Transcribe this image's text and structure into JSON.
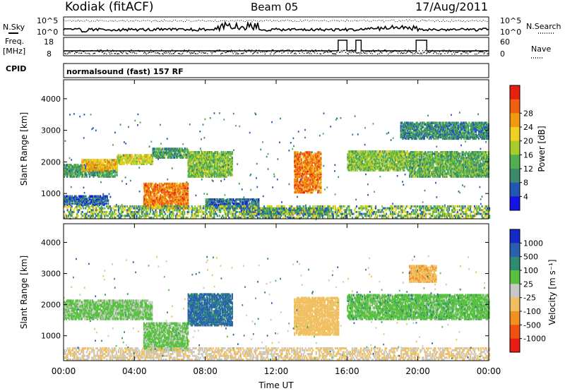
{
  "header": {
    "station": "Kodiak (fitACF)",
    "beam": "Beam 05",
    "date": "17/Aug/2011",
    "cpid_label": "CPID",
    "cpid_value": "normalsound (fast) 157 RF"
  },
  "left_labels": {
    "nsky": "N.Sky",
    "freq_line1": "Freq.",
    "freq_line2": "[MHz]"
  },
  "right_labels": {
    "nsearch": "N.Search",
    "nave": "Nave"
  },
  "status_axes": {
    "noise_ticks_left": [
      "10^5",
      "10^0"
    ],
    "noise_ticks_right": [
      "10^5",
      "10^0"
    ],
    "freq_ticks": [
      "18",
      "8"
    ],
    "nave_ticks": [
      "60",
      "0"
    ]
  },
  "chart_data": [
    {
      "type": "heatmap",
      "panel": "power",
      "ylabel": "Slant Range [km]",
      "y_ticks": [
        "1000",
        "2000",
        "3000",
        "4000"
      ],
      "ylim": [
        200,
        4600
      ],
      "colorbar": {
        "label": "Power [dB]",
        "ticks": [
          "4",
          "8",
          "12",
          "16",
          "20",
          "24",
          "28"
        ],
        "colors": [
          "#1414e6",
          "#2456b4",
          "#3a8a6c",
          "#50b050",
          "#a8cc28",
          "#f0d020",
          "#f09a10",
          "#f06010",
          "#e82010"
        ]
      },
      "regions": [
        {
          "t": [
            0.0,
            3.0
          ],
          "r": [
            1500,
            1900
          ],
          "v": 10
        },
        {
          "t": [
            1.0,
            3.0
          ],
          "r": [
            1700,
            2050
          ],
          "v": 22
        },
        {
          "t": [
            3.0,
            5.0
          ],
          "r": [
            1900,
            2200
          ],
          "v": 18
        },
        {
          "t": [
            5.0,
            7.0
          ],
          "r": [
            2100,
            2400
          ],
          "v": 10
        },
        {
          "t": [
            7.0,
            9.5
          ],
          "r": [
            1500,
            2300
          ],
          "v": 14
        },
        {
          "t": [
            4.5,
            7.0
          ],
          "r": [
            500,
            1300
          ],
          "v": 26
        },
        {
          "t": [
            0.0,
            2.5
          ],
          "r": [
            600,
            900
          ],
          "v": 5
        },
        {
          "t": [
            13.0,
            14.5
          ],
          "r": [
            1000,
            2300
          ],
          "v": 26
        },
        {
          "t": [
            16.0,
            19.5
          ],
          "r": [
            1700,
            2300
          ],
          "v": 14
        },
        {
          "t": [
            19.5,
            24.0
          ],
          "r": [
            1500,
            2300
          ],
          "v": 12
        },
        {
          "t": [
            19.0,
            24.0
          ],
          "r": [
            2700,
            3200
          ],
          "v": 8
        },
        {
          "t": [
            8.0,
            11.0
          ],
          "r": [
            500,
            800
          ],
          "v": 6
        },
        {
          "t": [
            10.0,
            15.0
          ],
          "r": [
            300,
            500
          ],
          "v": 6
        }
      ]
    },
    {
      "type": "heatmap",
      "panel": "velocity",
      "xlabel": "Time UT",
      "ylabel": "Slant Range [km]",
      "x_ticks": [
        "00:00",
        "04:00",
        "08:00",
        "12:00",
        "16:00",
        "20:00",
        "00:00"
      ],
      "y_ticks": [
        "1000",
        "2000",
        "3000",
        "4000"
      ],
      "xlim": [
        0,
        24
      ],
      "ylim": [
        200,
        4600
      ],
      "colorbar": {
        "label": "Velocity [m s⁻¹]",
        "ticks": [
          "1000",
          "500",
          "100",
          "25",
          "-25",
          "-100",
          "-500",
          "-1000"
        ],
        "colors": [
          "#1428c8",
          "#2860b0",
          "#2e8a70",
          "#58c040",
          "#c8c8c8",
          "#f0c060",
          "#f09020",
          "#f05010",
          "#e81c10"
        ]
      },
      "regions": [
        {
          "t": [
            0.0,
            5.0
          ],
          "r": [
            1500,
            2100
          ],
          "v": -10
        },
        {
          "t": [
            4.5,
            7.0
          ],
          "r": [
            500,
            1400
          ],
          "v": -10
        },
        {
          "t": [
            7.0,
            9.5
          ],
          "r": [
            1300,
            2300
          ],
          "v": 120
        },
        {
          "t": [
            13.0,
            15.5
          ],
          "r": [
            1000,
            2200
          ],
          "v": -300
        },
        {
          "t": [
            16.0,
            24.0
          ],
          "r": [
            1500,
            2300
          ],
          "v": 0
        },
        {
          "t": [
            19.5,
            21.0
          ],
          "r": [
            2700,
            3200
          ],
          "v": -400
        }
      ]
    }
  ]
}
